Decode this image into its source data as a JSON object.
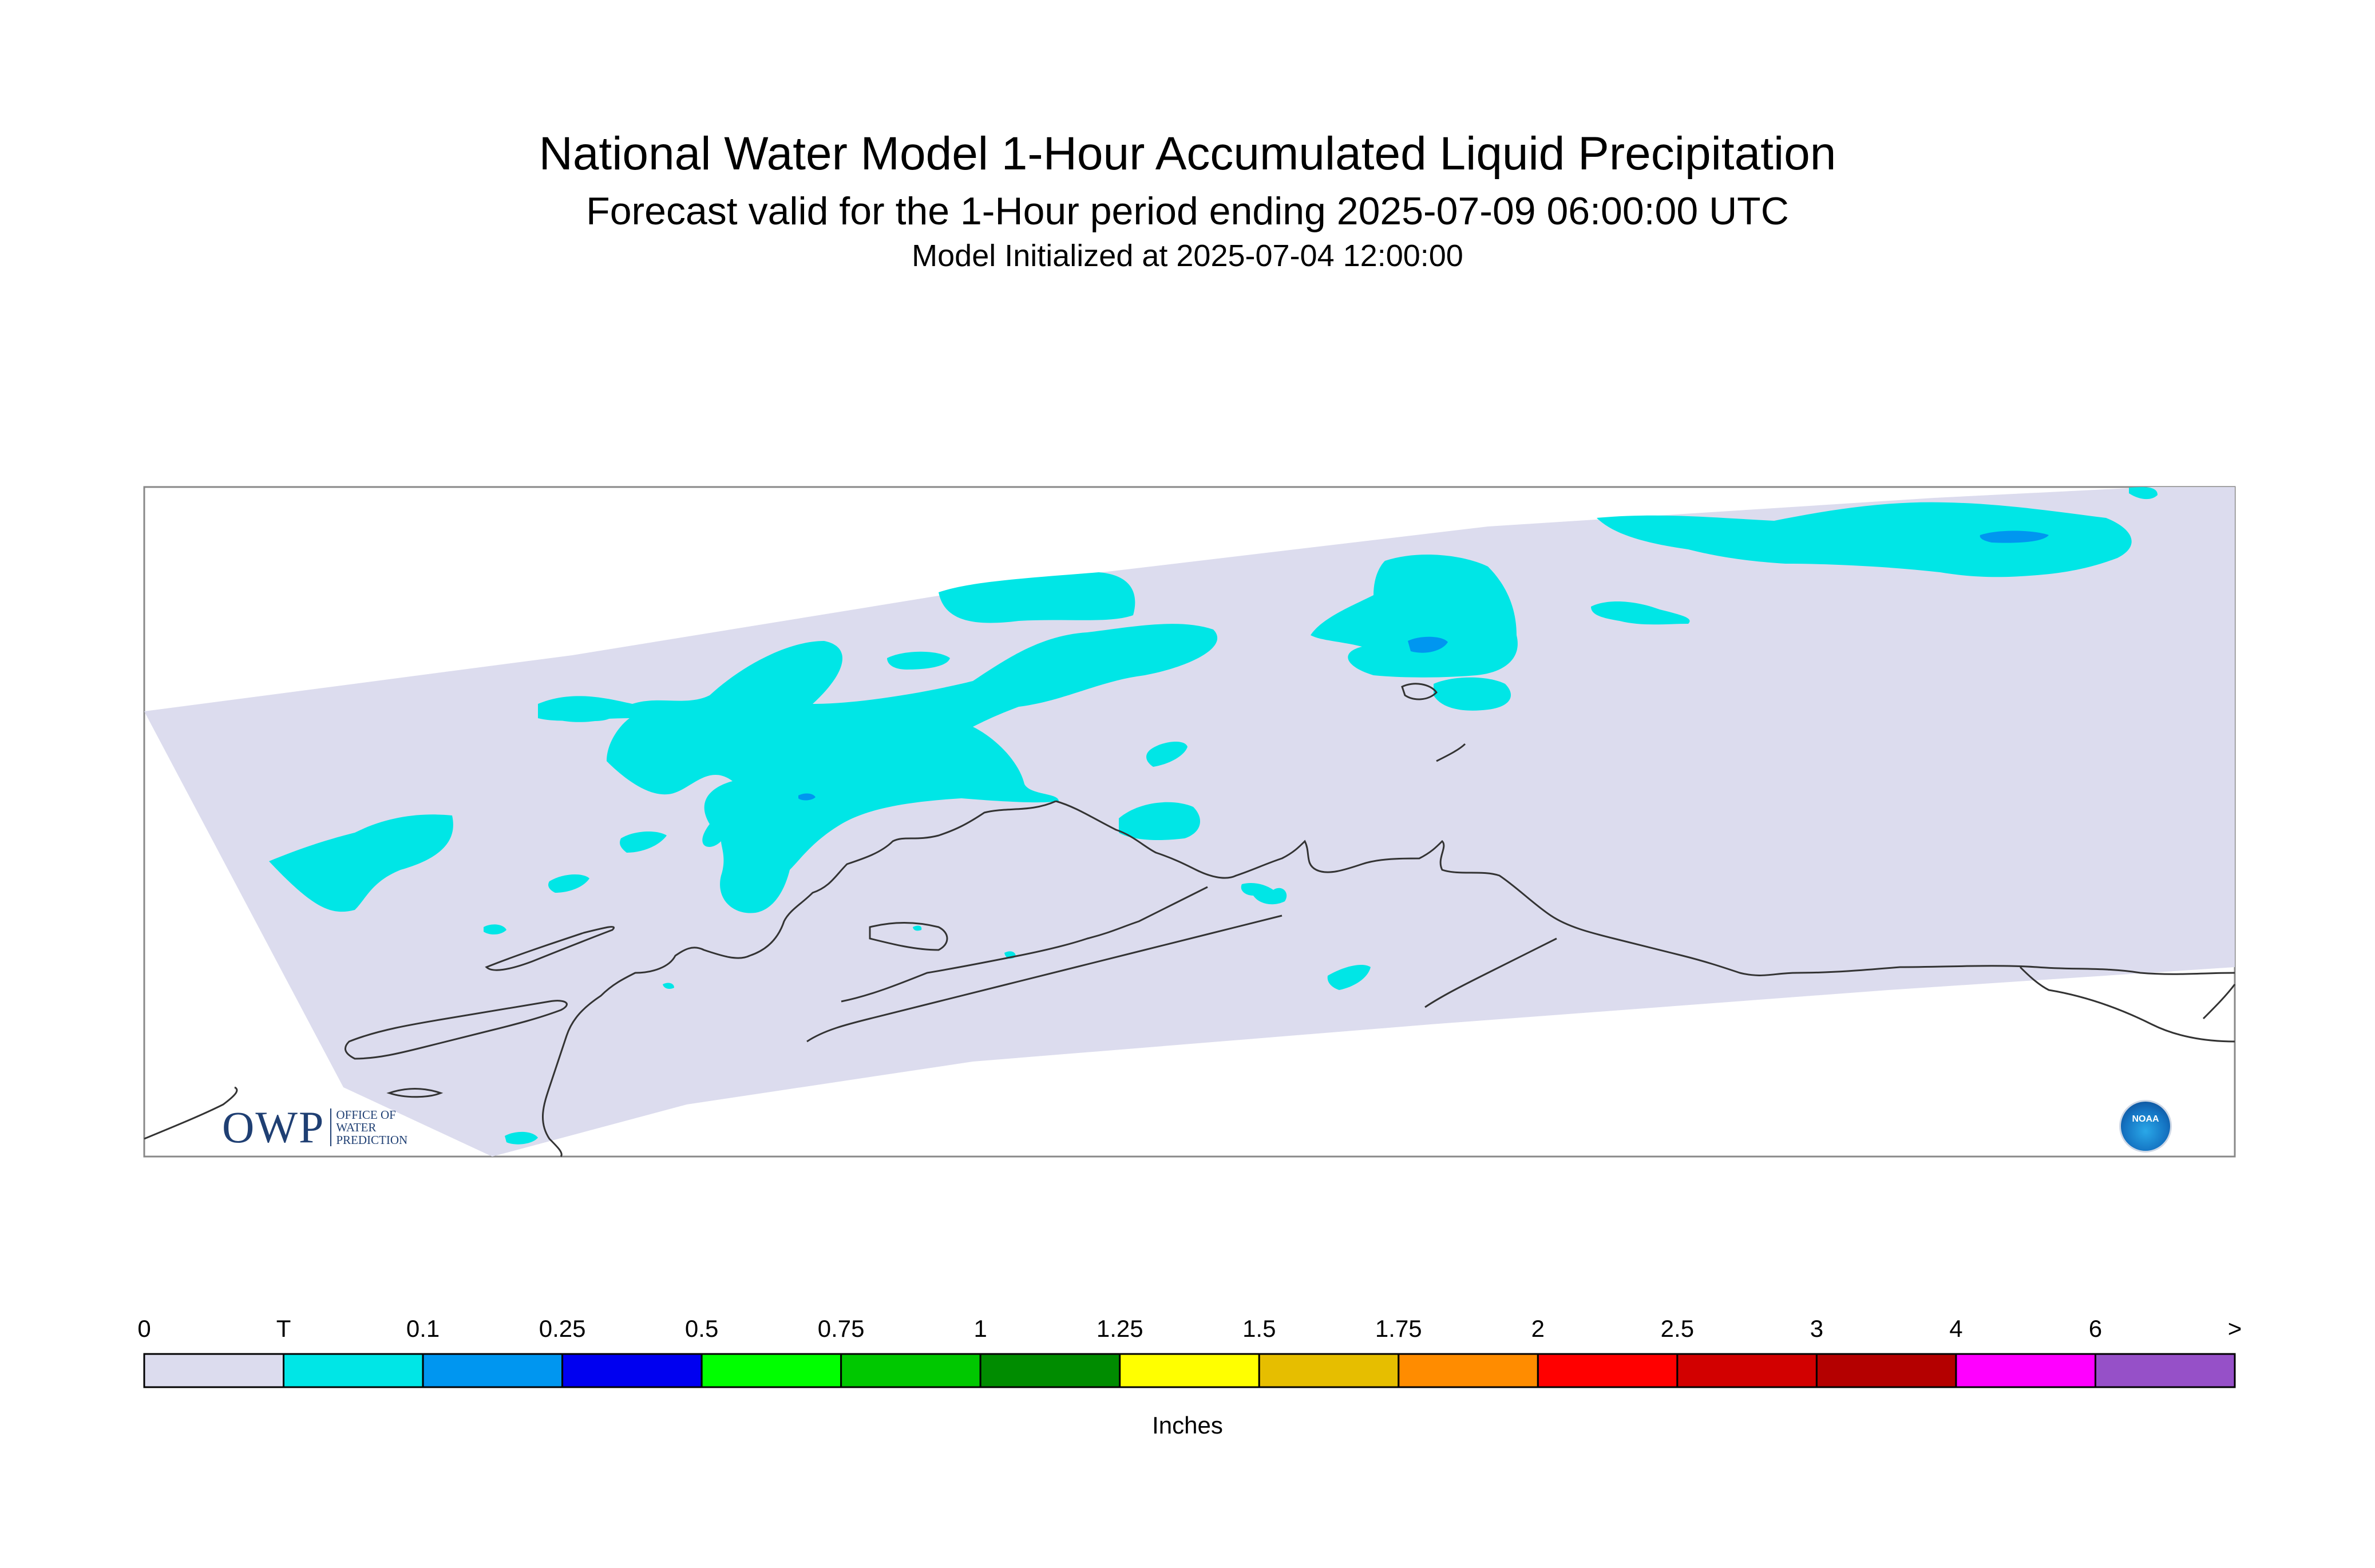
{
  "header": {
    "title": "National Water Model 1-Hour Accumulated Liquid Precipitation",
    "subtitle": "Forecast valid for the 1-Hour period ending 2025-07-09 06:00:00 UTC",
    "init": "Model Initialized at 2025-07-04 12:00:00"
  },
  "legend": {
    "labels": [
      "0",
      "T",
      "0.1",
      "0.25",
      "0.5",
      "0.75",
      "1",
      "1.25",
      "1.5",
      "1.75",
      "2",
      "2.5",
      "3",
      "4",
      "6",
      ">"
    ],
    "colors": [
      "#dcdcee",
      "#00e6e6",
      "#0096f0",
      "#0000f0",
      "#00ff00",
      "#00c800",
      "#008c00",
      "#ffff00",
      "#e6be00",
      "#ff8c00",
      "#ff0000",
      "#d20000",
      "#b40000",
      "#ff00ff",
      "#9650c8"
    ],
    "units": "Inches"
  },
  "logos": {
    "owp_big": "OWP",
    "owp_small": [
      "OFFICE OF",
      "WATER",
      "PREDICTION"
    ],
    "noaa": "NOAA"
  }
}
